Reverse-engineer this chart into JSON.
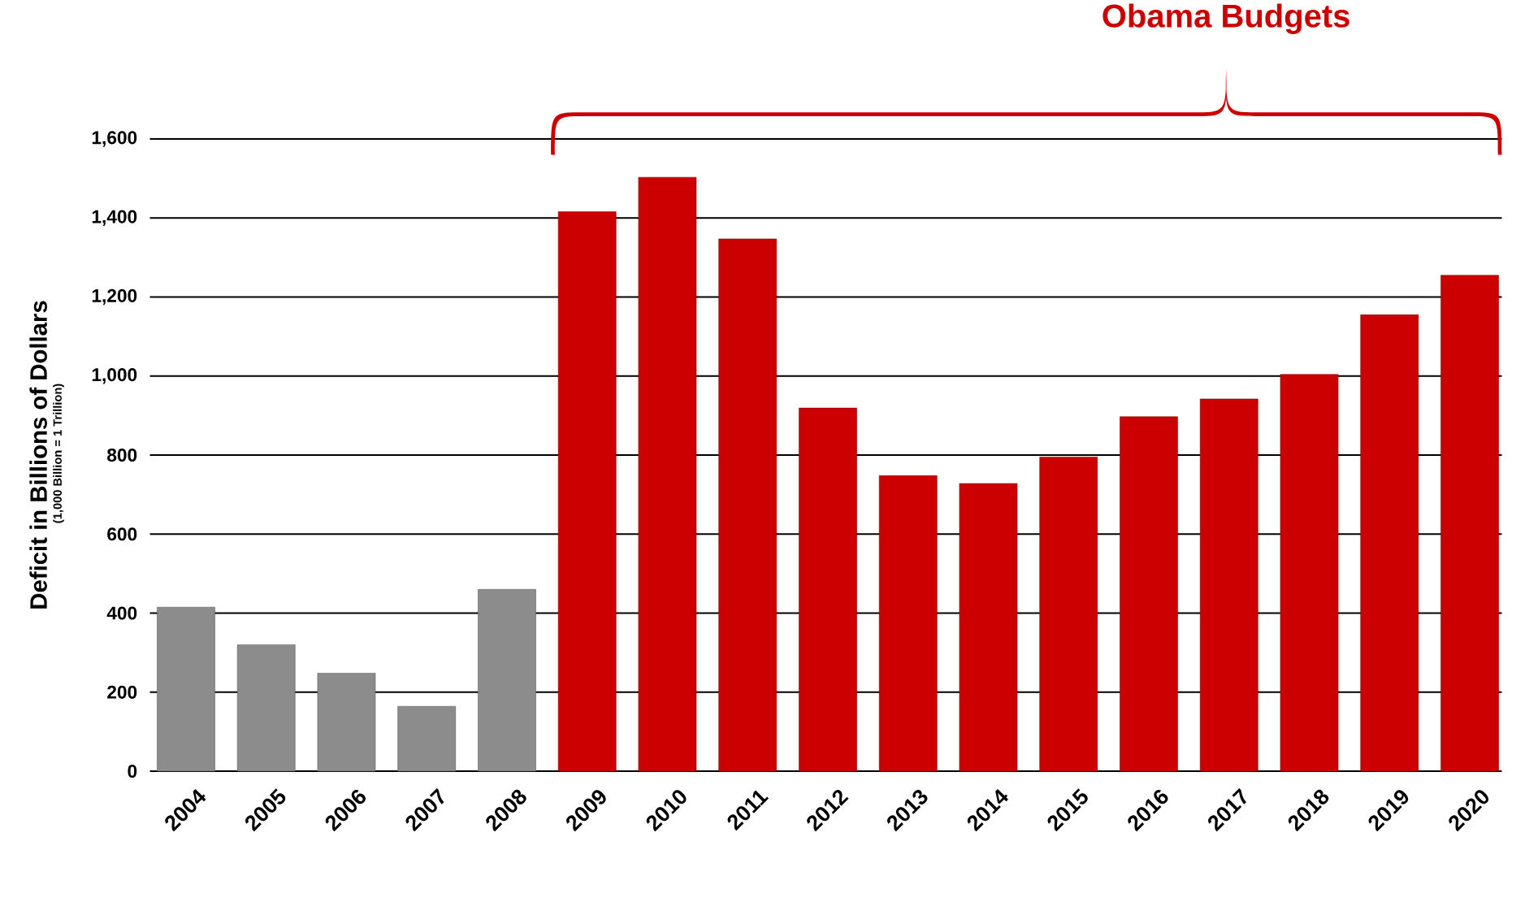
{
  "chart_data": {
    "type": "bar",
    "categories": [
      "2004",
      "2005",
      "2006",
      "2007",
      "2008",
      "2009",
      "2010",
      "2011",
      "2012",
      "2013",
      "2014",
      "2015",
      "2016",
      "2017",
      "2018",
      "2019",
      "2020"
    ],
    "values": [
      415,
      320,
      248,
      164,
      460,
      1416,
      1503,
      1347,
      919,
      748,
      728,
      795,
      897,
      942,
      1004,
      1155,
      1255
    ],
    "colors": [
      "#8c8c8c",
      "#8c8c8c",
      "#8c8c8c",
      "#8c8c8c",
      "#8c8c8c",
      "#cc0000",
      "#cc0000",
      "#cc0000",
      "#cc0000",
      "#cc0000",
      "#cc0000",
      "#cc0000",
      "#cc0000",
      "#cc0000",
      "#cc0000",
      "#cc0000",
      "#cc0000"
    ],
    "ylabel": "Deficit in Billions of Dollars",
    "annotations": [
      "Obama Budgets",
      "(1,000 Billion = 1 Trillion)"
    ],
    "ylim": [
      0,
      1600
    ],
    "yticks": [
      0,
      200,
      400,
      600,
      800,
      {
        "value": 1000,
        "label": "1,000"
      },
      {
        "value": 1200,
        "label": "1,200"
      },
      {
        "value": 1400,
        "label": "1,400"
      },
      {
        "value": 1600,
        "label": "1,600"
      }
    ],
    "grid": "y"
  }
}
